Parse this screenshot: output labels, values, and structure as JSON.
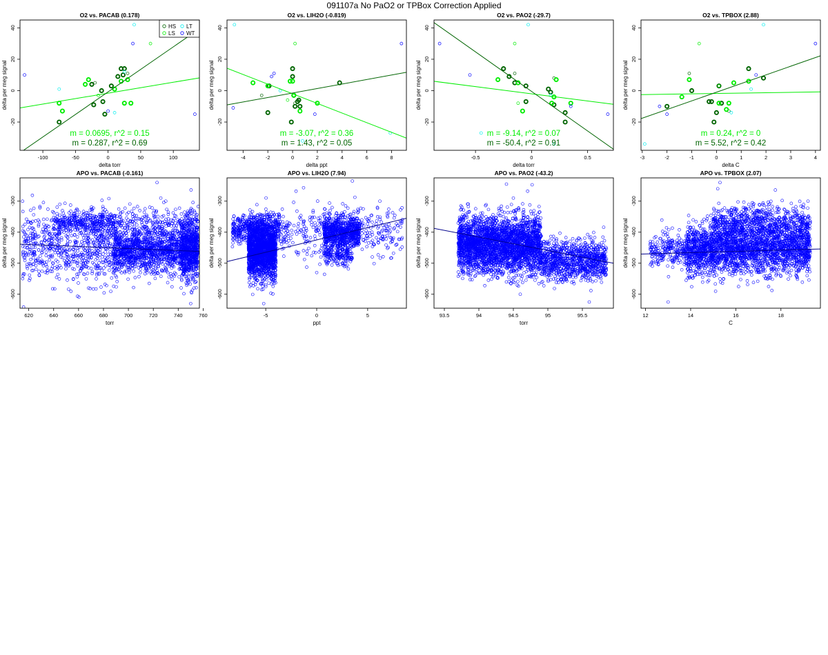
{
  "page_title": "091107a   No PaO2 or TPBox Correction Applied",
  "colors": {
    "HS": "#006400",
    "LS": "#00ee00",
    "LT": "#00eeee",
    "WT": "#0000ff",
    "APO": "#0000ff"
  },
  "chart_data": [
    {
      "type": "scatter",
      "title": "O2 vs. PACAB (0.178)",
      "xlabel": "delta torr",
      "ylabel": "delta per meg signal",
      "xlim": [
        -135,
        140
      ],
      "ylim": [
        -38,
        45
      ],
      "xticks": [
        -100,
        -50,
        0,
        50,
        100
      ],
      "yticks": [
        -20,
        0,
        20,
        40
      ],
      "legend": {
        "position": "top-right",
        "entries": [
          "HS",
          "LS",
          "LT",
          "WT"
        ],
        "labels": [
          "HS",
          "LS",
          "LT",
          "WT"
        ]
      },
      "fits": [
        {
          "group": "LS",
          "slope": 0.0695,
          "intercept": -1.6
        },
        {
          "group": "HS",
          "slope": 0.287,
          "intercept": -0.8
        }
      ],
      "annotations": [
        {
          "text": "m = 0.0695, r^2 = 0.15",
          "group": "LS"
        },
        {
          "text": "m = 0.287, r^2 = 0.69",
          "group": "HS"
        }
      ],
      "groups": [
        {
          "name": "HS",
          "bold": true,
          "x": [
            -10,
            25,
            5,
            -8,
            -25,
            -5,
            15,
            20,
            -75,
            23,
            -22
          ],
          "y": [
            0,
            14,
            3,
            -7,
            4,
            -15,
            9,
            14,
            -20,
            10,
            -9
          ]
        },
        {
          "name": "HS",
          "bold": false,
          "x": [
            30,
            -20
          ],
          "y": [
            11,
            5
          ]
        },
        {
          "name": "LS",
          "bold": true,
          "x": [
            -70,
            -75,
            -30,
            -35,
            10,
            20,
            30,
            25,
            35
          ],
          "y": [
            -13,
            -8,
            7,
            4,
            1,
            6,
            7,
            -8,
            -8
          ]
        },
        {
          "name": "LS",
          "bold": false,
          "x": [
            65,
            -15
          ],
          "y": [
            30,
            -3
          ]
        },
        {
          "name": "LT",
          "bold": false,
          "x": [
            -75,
            40,
            25,
            10
          ],
          "y": [
            1,
            42,
            12,
            -14
          ]
        },
        {
          "name": "WT",
          "bold": false,
          "x": [
            -128,
            38,
            133,
            0
          ],
          "y": [
            10,
            30,
            -15,
            -13
          ]
        }
      ]
    },
    {
      "type": "scatter",
      "title": "O2 vs. LIH2O (-0.819)",
      "xlabel": "delta ppt",
      "ylabel": "delta per meg signal",
      "xlim": [
        -5.3,
        9.2
      ],
      "ylim": [
        -38,
        45
      ],
      "xticks": [
        -4,
        -2,
        0,
        2,
        4,
        6,
        8
      ],
      "yticks": [
        -20,
        0,
        20,
        40
      ],
      "fits": [
        {
          "group": "LS",
          "slope": -3.07,
          "intercept": -2.0
        },
        {
          "group": "HS",
          "slope": 1.43,
          "intercept": -1.5
        }
      ],
      "annotations": [
        {
          "text": "m = -3.07, r^2 = 0.36",
          "group": "LS"
        },
        {
          "text": "m = 1.43, r^2 = 0.05",
          "group": "HS"
        }
      ],
      "groups": [
        {
          "name": "HS",
          "bold": true,
          "x": [
            0,
            0,
            0.2,
            0.5,
            0.6,
            0.4,
            3.8,
            -2,
            -1.9,
            0.1,
            -0.1
          ],
          "y": [
            14,
            9,
            -10,
            -6,
            -10,
            -7,
            5,
            -14,
            3,
            -3,
            -20
          ]
        },
        {
          "name": "HS",
          "bold": false,
          "x": [
            0.2,
            -2.5
          ],
          "y": [
            -8,
            -3
          ]
        },
        {
          "name": "LS",
          "bold": true,
          "x": [
            -3.2,
            -2,
            -0.2,
            0,
            2,
            0.6,
            0.1
          ],
          "y": [
            5,
            3,
            6,
            6,
            -8,
            -13,
            -3
          ]
        },
        {
          "name": "LS",
          "bold": false,
          "x": [
            0.2,
            -0.4
          ],
          "y": [
            30,
            -6
          ]
        },
        {
          "name": "LT",
          "bold": false,
          "x": [
            -4.7,
            7.9,
            -1,
            0.8
          ],
          "y": [
            42,
            -27,
            0,
            -32
          ]
        },
        {
          "name": "WT",
          "bold": false,
          "x": [
            -4.8,
            -1.5,
            8.8,
            1.8,
            -1.7
          ],
          "y": [
            -11,
            11,
            30,
            -15,
            9
          ]
        }
      ]
    },
    {
      "type": "scatter",
      "title": "O2 vs. PAO2 (-29.7)",
      "xlabel": "delta torr",
      "ylabel": "delta per meg signal",
      "xlim": [
        -0.87,
        0.73
      ],
      "ylim": [
        -38,
        45
      ],
      "xticks": [
        -0.5,
        0.0,
        0.5
      ],
      "yticks": [
        -20,
        0,
        20,
        40
      ],
      "fits": [
        {
          "group": "LS",
          "slope": -9.14,
          "intercept": -2.0
        },
        {
          "group": "HS",
          "slope": -50.4,
          "intercept": -0.5
        }
      ],
      "annotations": [
        {
          "text": "m = -9.14, r^2 = 0.07",
          "group": "LS"
        },
        {
          "text": "m = -50.4, r^2 = 0.91",
          "group": "HS"
        }
      ],
      "groups": [
        {
          "name": "HS",
          "bold": true,
          "x": [
            -0.25,
            -0.2,
            -0.15,
            -0.05,
            0.15,
            0.2,
            0.3,
            0.3,
            -0.05,
            0.17
          ],
          "y": [
            14,
            9,
            5,
            3,
            1,
            -9,
            -14,
            -20,
            -7,
            -1
          ]
        },
        {
          "name": "HS",
          "bold": false,
          "x": [
            -0.15,
            0.2
          ],
          "y": [
            11,
            8
          ]
        },
        {
          "name": "LS",
          "bold": true,
          "x": [
            -0.3,
            -0.12,
            -0.08,
            0.2,
            0.22,
            0.35,
            0.18
          ],
          "y": [
            7,
            5,
            -13,
            -4,
            7,
            -8,
            -8
          ]
        },
        {
          "name": "LS",
          "bold": false,
          "x": [
            -0.15,
            -0.12
          ],
          "y": [
            30,
            -8
          ]
        },
        {
          "name": "LT",
          "bold": false,
          "x": [
            -0.45,
            0.2,
            -0.03,
            0.17
          ],
          "y": [
            -27,
            -34,
            42,
            -3
          ]
        },
        {
          "name": "WT",
          "bold": false,
          "x": [
            -0.82,
            -0.55,
            0.68,
            0.35
          ],
          "y": [
            30,
            10,
            -15,
            -10
          ]
        }
      ]
    },
    {
      "type": "scatter",
      "title": "O2 vs. TPBOX (2.88)",
      "xlabel": "delta C",
      "ylabel": "delta per meg signal",
      "xlim": [
        -3.05,
        4.2
      ],
      "ylim": [
        -38,
        45
      ],
      "xticks": [
        -3,
        -2,
        -1,
        0,
        1,
        2,
        3,
        4
      ],
      "yticks": [
        -20,
        0,
        20,
        40
      ],
      "fits": [
        {
          "group": "LS",
          "slope": 0.24,
          "intercept": -1.8
        },
        {
          "group": "HS",
          "slope": 5.52,
          "intercept": -1.0
        }
      ],
      "annotations": [
        {
          "text": "m = 0.24, r^2 = 0",
          "group": "LS"
        },
        {
          "text": "m = 5.52, r^2 = 0.42",
          "group": "HS"
        }
      ],
      "groups": [
        {
          "name": "HS",
          "bold": true,
          "x": [
            -2,
            -1,
            0.1,
            -0.2,
            0,
            1.3,
            1.9,
            0.2,
            -0.1,
            -0.3
          ],
          "y": [
            -10,
            0,
            3,
            -7,
            -14,
            14,
            8,
            -8,
            -20,
            -7
          ]
        },
        {
          "name": "HS",
          "bold": false,
          "x": [
            -1.1,
            0.5
          ],
          "y": [
            11,
            -13
          ]
        },
        {
          "name": "LS",
          "bold": true,
          "x": [
            -1.4,
            -1.1,
            0.7,
            1.3,
            0.5,
            0.1,
            0.4
          ],
          "y": [
            -4,
            7,
            5,
            6,
            -8,
            -8,
            -12
          ]
        },
        {
          "name": "LS",
          "bold": false,
          "x": [
            -0.7,
            0.1
          ],
          "y": [
            30,
            3
          ]
        },
        {
          "name": "LT",
          "bold": false,
          "x": [
            -2.9,
            1.9,
            1.4,
            0.6
          ],
          "y": [
            -34,
            42,
            1,
            -14
          ]
        },
        {
          "name": "WT",
          "bold": false,
          "x": [
            -2.3,
            -2,
            4,
            1.6
          ],
          "y": [
            -10,
            -15,
            30,
            10
          ]
        }
      ]
    },
    {
      "type": "scatter",
      "title": "APO vs. PACAB (-0.161)",
      "xlabel": "torr",
      "ylabel": "delta per meg signal",
      "xlim": [
        613,
        757
      ],
      "ylim": [
        -645,
        -225
      ],
      "xticks": [
        620,
        640,
        660,
        680,
        700,
        720,
        740,
        760
      ],
      "yticks": [
        -300,
        -400,
        -500,
        -600
      ],
      "fits": [
        {
          "group": "APO",
          "slope": -0.161,
          "intercept": -340
        }
      ],
      "clusters": [
        {
          "n": 700,
          "x": [
            615,
            690
          ],
          "y": [
            -450,
            55
          ]
        },
        {
          "n": 350,
          "x": [
            640,
            690
          ],
          "y": [
            -370,
            20
          ]
        },
        {
          "n": 1500,
          "x": [
            688,
            756
          ],
          "y": [
            -460,
            35
          ]
        },
        {
          "n": 250,
          "x": [
            690,
            756
          ],
          "y": [
            -370,
            25
          ]
        },
        {
          "n": 500,
          "x": [
            742,
            756
          ],
          "y": [
            -460,
            55
          ]
        }
      ],
      "outliers": {
        "x": [
          723,
          726,
          730,
          750,
          668,
          645
        ],
        "y": [
          -240,
          -290,
          -300,
          -630,
          -580,
          -310
        ]
      }
    },
    {
      "type": "scatter",
      "title": "APO vs. LIH2O (7.94)",
      "xlabel": "ppt",
      "ylabel": "delta per meg signal",
      "xlim": [
        -8.8,
        8.8
      ],
      "ylim": [
        -645,
        -225
      ],
      "xticks": [
        -5,
        0,
        5
      ],
      "yticks": [
        -300,
        -400,
        -500,
        -600
      ],
      "fits": [
        {
          "group": "APO",
          "slope": 7.94,
          "intercept": -425
        }
      ],
      "clusters": [
        {
          "n": 1800,
          "x": [
            -6.7,
            -4.0
          ],
          "y": [
            -460,
            45
          ]
        },
        {
          "n": 500,
          "x": [
            -8.3,
            -3.5
          ],
          "y": [
            -390,
            22
          ]
        },
        {
          "n": 700,
          "x": [
            0.7,
            4.2
          ],
          "y": [
            -400,
            25
          ]
        },
        {
          "n": 400,
          "x": [
            -3.5,
            8.5
          ],
          "y": [
            -400,
            40
          ]
        },
        {
          "n": 200,
          "x": [
            0.7,
            3.5
          ],
          "y": [
            -470,
            20
          ]
        }
      ],
      "outliers": {
        "x": [
          3.5,
          -5.2,
          -5.0,
          6.2,
          0.0
        ],
        "y": [
          -235,
          -630,
          -570,
          -300,
          -530
        ]
      }
    },
    {
      "type": "scatter",
      "title": "APO vs. PAO2 (-43.2)",
      "xlabel": "torr",
      "ylabel": "delta per meg signal",
      "xlim": [
        93.35,
        95.95
      ],
      "ylim": [
        -645,
        -225
      ],
      "xticks": [
        93.5,
        94.0,
        94.5,
        95.0,
        95.5
      ],
      "yticks": [
        -300,
        -400,
        -500,
        -600
      ],
      "fits": [
        {
          "group": "APO",
          "slope": -43.2,
          "intercept": 3645
        }
      ],
      "clusters": [
        {
          "n": 3000,
          "x": [
            93.7,
            94.9
          ],
          "y": [
            -440,
            45
          ]
        },
        {
          "n": 1000,
          "x": [
            94.9,
            95.85
          ],
          "y": [
            -490,
            32
          ]
        }
      ],
      "outliers": {
        "x": [
          94.4,
          95.6,
          94.5,
          94.6
        ],
        "y": [
          -245,
          -625,
          -290,
          -600
        ]
      }
    },
    {
      "type": "scatter",
      "title": "APO vs. TPBOX (2.07)",
      "xlabel": "C",
      "ylabel": "delta per meg signal",
      "xlim": [
        11.8,
        19.75
      ],
      "ylim": [
        -645,
        -225
      ],
      "xticks": [
        12,
        14,
        16,
        18
      ],
      "yticks": [
        -300,
        -400,
        -500,
        -600
      ],
      "fits": [
        {
          "group": "APO",
          "slope": 2.07,
          "intercept": -495
        }
      ],
      "clusters": [
        {
          "n": 2600,
          "x": [
            13.8,
            19.3
          ],
          "y": [
            -455,
            40
          ]
        },
        {
          "n": 700,
          "x": [
            15.0,
            19.3
          ],
          "y": [
            -370,
            28
          ]
        },
        {
          "n": 250,
          "x": [
            12.2,
            13.9
          ],
          "y": [
            -460,
            30
          ]
        }
      ],
      "outliers": {
        "x": [
          13.0,
          15.2,
          15.3,
          19.2
        ],
        "y": [
          -625,
          -260,
          -240,
          -300
        ]
      }
    }
  ]
}
